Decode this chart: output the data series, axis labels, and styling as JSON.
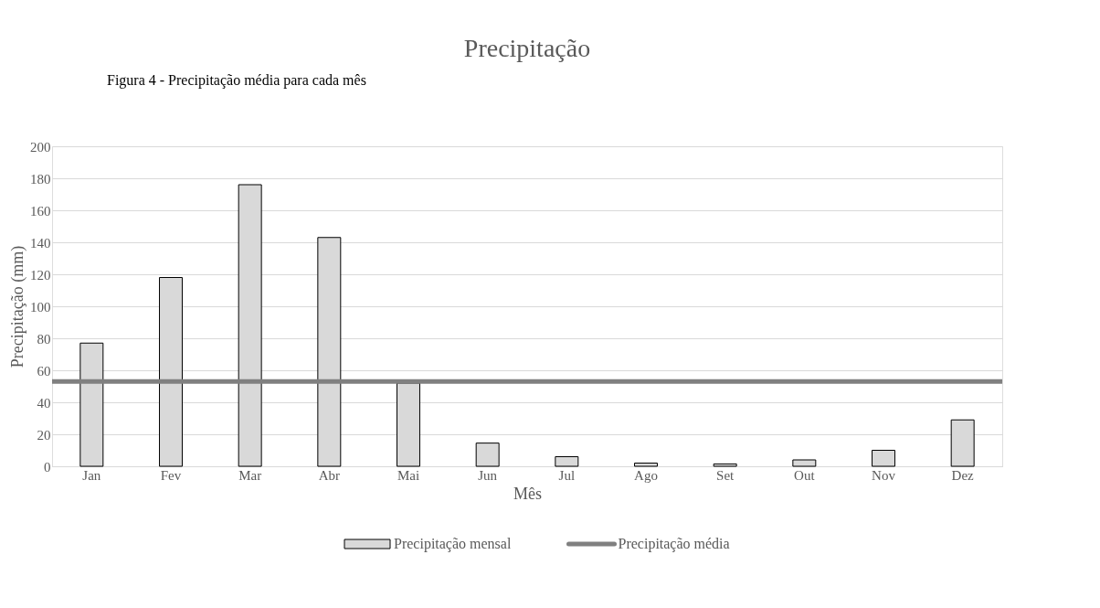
{
  "chart_data": {
    "type": "bar",
    "title": "Precipitação",
    "xlabel": "Mês",
    "ylabel": "Precipitação (mm)",
    "annotations": [
      "Figura 4 - Precipitação média para cada mês"
    ],
    "categories": [
      "Jan",
      "Fev",
      "Mar",
      "Abr",
      "Mai",
      "Jun",
      "Jul",
      "Ago",
      "Set",
      "Out",
      "Nov",
      "Dez"
    ],
    "series": [
      {
        "name": "Precipitação mensal",
        "color": "#d9d9d9",
        "values": [
          77,
          118,
          176,
          143,
          52,
          14.5,
          6,
          2,
          1.5,
          4,
          10,
          29
        ]
      }
    ],
    "ref_lines": [
      {
        "axis": "y",
        "value": 53,
        "label": "Precipitação média",
        "color": "#808080"
      }
    ],
    "ylim": [
      0,
      200
    ],
    "yticks": [
      0,
      20,
      40,
      60,
      80,
      100,
      120,
      140,
      160,
      180,
      200
    ],
    "grid": "y",
    "legend": "bottom"
  }
}
